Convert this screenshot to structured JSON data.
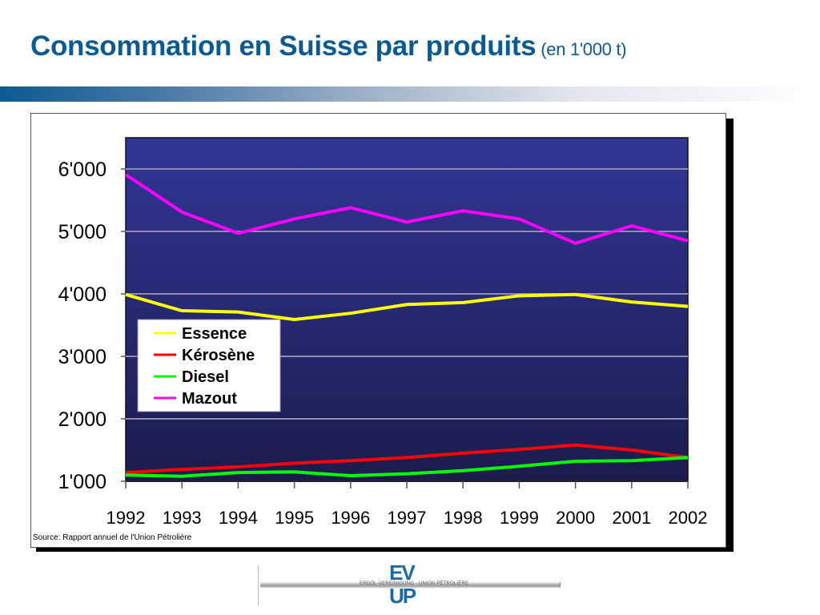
{
  "header": {
    "title": "Consommation en Suisse par produits",
    "subtitle": "(en 1'000 t)"
  },
  "source_note": "Source: Rapport annuel de l'Union Pétrolière",
  "logo": {
    "top_text": "EV",
    "bottom_text": "UP",
    "bar_text": "ERDÖL-VEREINIGUNG · UNION PÉTROLIÈRE"
  },
  "colors": {
    "title": "#0a5b93",
    "plot_bg_top": "#323696",
    "plot_bg_bottom": "#1b1b4c",
    "gridline": "#8c8cb4",
    "essence": "#ffff00",
    "kerosene": "#ff0000",
    "diesel": "#00ff00",
    "mazout": "#ff00ff"
  },
  "chart_data": {
    "type": "line",
    "title": "Consommation en Suisse par produits (en 1'000 t)",
    "xlabel": "",
    "ylabel": "",
    "x": [
      "1992",
      "1993",
      "1994",
      "1995",
      "1996",
      "1997",
      "1998",
      "1999",
      "2000",
      "2001",
      "2002"
    ],
    "ylim": [
      1000,
      6500
    ],
    "yticks": [
      1000,
      2000,
      3000,
      4000,
      5000,
      6000
    ],
    "ytick_labels": [
      "1'000",
      "2'000",
      "3'000",
      "4'000",
      "5'000",
      "6'000"
    ],
    "grid": true,
    "legend": "left-middle inside plot",
    "series": [
      {
        "name": "Essence",
        "color": "#ffff00",
        "values": [
          3990,
          3730,
          3710,
          3590,
          3690,
          3830,
          3860,
          3970,
          3990,
          3870,
          3800
        ]
      },
      {
        "name": "Kérosène",
        "color": "#ff0000",
        "values": [
          1140,
          1190,
          1230,
          1290,
          1330,
          1380,
          1450,
          1510,
          1580,
          1500,
          1380
        ]
      },
      {
        "name": "Diesel",
        "color": "#00ff00",
        "values": [
          1100,
          1080,
          1140,
          1150,
          1090,
          1120,
          1170,
          1240,
          1320,
          1330,
          1380
        ]
      },
      {
        "name": "Mazout",
        "color": "#ff00ff",
        "values": [
          5910,
          5310,
          4970,
          5200,
          5380,
          5150,
          5330,
          5200,
          4810,
          5090,
          4850
        ]
      }
    ]
  }
}
